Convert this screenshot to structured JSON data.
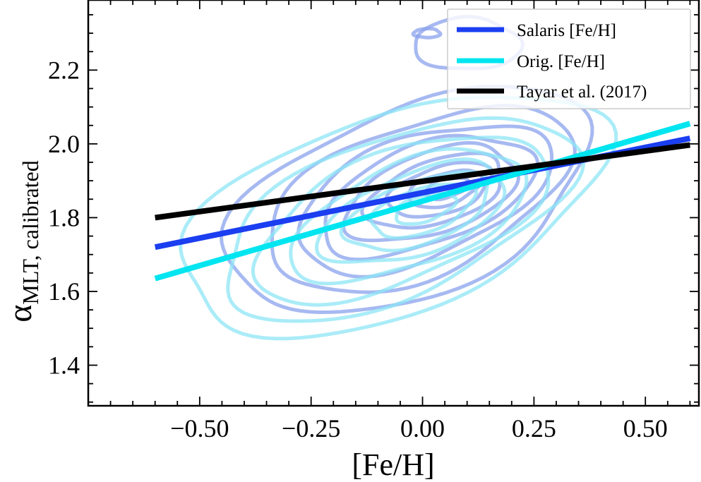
{
  "chart_data": {
    "type": "line",
    "xlabel": "[Fe/H]",
    "ylabel": {
      "symbol": "α",
      "subscript": "MLT, calibrated"
    },
    "xlim": [
      -0.75,
      0.62
    ],
    "ylim": [
      1.29,
      2.39
    ],
    "xticks": [
      -0.5,
      -0.25,
      0.0,
      0.25,
      0.5
    ],
    "xtick_labels": [
      "−0.50",
      "−0.25",
      "0.00",
      "0.25",
      "0.50"
    ],
    "yticks": [
      1.4,
      1.6,
      1.8,
      2.0,
      2.2
    ],
    "ytick_labels": [
      "1.4",
      "1.6",
      "1.8",
      "2.0",
      "2.2"
    ],
    "x_minor_step": 0.05,
    "y_minor_step": 0.05,
    "legend_position": "top-right",
    "series": [
      {
        "name": "Salaris [Fe/H]",
        "color": "#1a3ef0",
        "x": [
          -0.6,
          0.6
        ],
        "y": [
          1.72,
          2.015
        ]
      },
      {
        "name": "Orig. [Fe/H]",
        "color": "#00e5f0",
        "x": [
          -0.6,
          0.6
        ],
        "y": [
          1.635,
          2.055
        ]
      },
      {
        "name": "Tayar et al. (2017)",
        "color": "#000000",
        "x": [
          -0.6,
          0.6
        ],
        "y": [
          1.8,
          1.997
        ]
      }
    ],
    "density_contours": [
      {
        "name": "Salaris [Fe/H] density",
        "color": "#8aa2ec",
        "levels": [
          {
            "cx": -0.03,
            "cy": 1.845,
            "rx": 0.43,
            "ry": 0.255,
            "angle": 22
          },
          {
            "cx": -0.01,
            "cy": 1.85,
            "rx": 0.36,
            "ry": 0.205,
            "angle": 22
          },
          {
            "cx": 0.0,
            "cy": 1.855,
            "rx": 0.3,
            "ry": 0.165,
            "angle": 21
          },
          {
            "cx": 0.01,
            "cy": 1.86,
            "rx": 0.25,
            "ry": 0.135,
            "angle": 20
          },
          {
            "cx": 0.02,
            "cy": 1.865,
            "rx": 0.2,
            "ry": 0.11,
            "angle": 19
          },
          {
            "cx": 0.03,
            "cy": 1.87,
            "rx": 0.16,
            "ry": 0.085,
            "angle": 18
          },
          {
            "cx": 0.04,
            "cy": 1.875,
            "rx": 0.12,
            "ry": 0.063,
            "angle": 17
          },
          {
            "cx": 0.05,
            "cy": 1.878,
            "rx": 0.085,
            "ry": 0.043,
            "angle": 16
          },
          {
            "cx": 0.055,
            "cy": 1.88,
            "rx": 0.05,
            "ry": 0.025,
            "angle": 15
          },
          {
            "cx": 0.1,
            "cy": 2.27,
            "rx": 0.12,
            "ry": 0.07,
            "angle": 0
          },
          {
            "cx": 0.01,
            "cy": 2.3,
            "rx": 0.03,
            "ry": 0.012,
            "angle": 0
          }
        ]
      },
      {
        "name": "Orig. [Fe/H] density",
        "color": "#8ee6f6",
        "levels": [
          {
            "cx": -0.07,
            "cy": 1.81,
            "rx": 0.5,
            "ry": 0.27,
            "angle": 20
          },
          {
            "cx": -0.06,
            "cy": 1.8,
            "rx": 0.42,
            "ry": 0.215,
            "angle": 22
          },
          {
            "cx": -0.05,
            "cy": 1.8,
            "rx": 0.35,
            "ry": 0.175,
            "angle": 22
          },
          {
            "cx": -0.03,
            "cy": 1.805,
            "rx": 0.28,
            "ry": 0.14,
            "angle": 21
          },
          {
            "cx": -0.02,
            "cy": 1.81,
            "rx": 0.22,
            "ry": 0.11,
            "angle": 20
          },
          {
            "cx": -0.01,
            "cy": 1.815,
            "rx": 0.17,
            "ry": 0.085,
            "angle": 19
          },
          {
            "cx": 0.0,
            "cy": 1.82,
            "rx": 0.12,
            "ry": 0.06,
            "angle": 18
          },
          {
            "cx": 0.005,
            "cy": 1.825,
            "rx": 0.07,
            "ry": 0.035,
            "angle": 17
          }
        ]
      }
    ]
  }
}
